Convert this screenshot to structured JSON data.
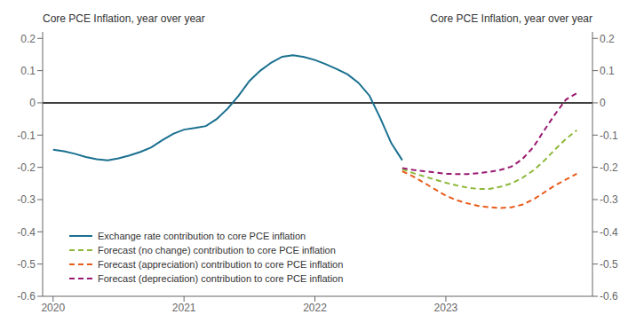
{
  "chart_data": {
    "type": "line",
    "title": "Core PCE Inflation, year over year",
    "subtitle": "Core PCE Inflation, year over year",
    "xlim": [
      2019.92,
      2024.12
    ],
    "xticks": [
      2020,
      2021,
      2022,
      2023
    ],
    "ylim": [
      -0.6,
      0.22
    ],
    "yticks": [
      -0.6,
      -0.5,
      -0.4,
      -0.3,
      -0.2,
      -0.1,
      0,
      0.1,
      0.2
    ],
    "y2lim": [
      -0.6,
      0.22
    ],
    "y2ticks": [
      -0.6,
      -0.5,
      -0.4,
      -0.3,
      -0.2,
      -0.1,
      0,
      0.1,
      0.2
    ],
    "grid": false,
    "legend": "lower left",
    "reference_lines": [
      {
        "y": 0,
        "color": "#000000"
      }
    ],
    "series": [
      {
        "name": "Exchange rate contribution to core PCE inflation",
        "color": "#1a7090",
        "line_style": "solid",
        "x": [
          2020.0,
          2020.083,
          2020.167,
          2020.25,
          2020.333,
          2020.417,
          2020.5,
          2020.583,
          2020.667,
          2020.75,
          2020.833,
          2020.917,
          2021.0,
          2021.083,
          2021.167,
          2021.25,
          2021.333,
          2021.417,
          2021.5,
          2021.583,
          2021.667,
          2021.75,
          2021.833,
          2021.917,
          2022.0,
          2022.083,
          2022.167,
          2022.25,
          2022.333,
          2022.417,
          2022.5,
          2022.583,
          2022.667
        ],
        "values": [
          -0.145,
          -0.15,
          -0.158,
          -0.168,
          -0.175,
          -0.178,
          -0.172,
          -0.163,
          -0.152,
          -0.138,
          -0.116,
          -0.096,
          -0.083,
          -0.078,
          -0.072,
          -0.05,
          -0.018,
          0.022,
          0.068,
          0.1,
          0.125,
          0.143,
          0.148,
          0.142,
          0.133,
          0.12,
          0.105,
          0.088,
          0.062,
          0.022,
          -0.048,
          -0.125,
          -0.178
        ]
      },
      {
        "name": "Forecast (no change) contribution to core PCE inflation",
        "color": "#8db83a",
        "line_style": "dashed",
        "x": [
          2022.667,
          2022.75,
          2022.833,
          2022.917,
          2023.0,
          2023.083,
          2023.167,
          2023.25,
          2023.333,
          2023.417,
          2023.5,
          2023.583,
          2023.667,
          2023.75,
          2023.833,
          2023.917,
          2024.0
        ],
        "values": [
          -0.205,
          -0.218,
          -0.228,
          -0.238,
          -0.248,
          -0.256,
          -0.263,
          -0.267,
          -0.267,
          -0.26,
          -0.25,
          -0.233,
          -0.21,
          -0.18,
          -0.145,
          -0.112,
          -0.085
        ]
      },
      {
        "name": "Forecast (appreciation) contribution to core PCE inflation",
        "color": "#e85c1a",
        "line_style": "dashed",
        "x": [
          2022.667,
          2022.75,
          2022.833,
          2022.917,
          2023.0,
          2023.083,
          2023.167,
          2023.25,
          2023.333,
          2023.417,
          2023.5,
          2023.583,
          2023.667,
          2023.75,
          2023.833,
          2023.917,
          2024.0
        ],
        "values": [
          -0.212,
          -0.228,
          -0.248,
          -0.268,
          -0.288,
          -0.302,
          -0.312,
          -0.32,
          -0.324,
          -0.326,
          -0.324,
          -0.316,
          -0.3,
          -0.278,
          -0.256,
          -0.238,
          -0.22
        ]
      },
      {
        "name": "Forecast (depreciation) contribution to core PCE inflation",
        "color": "#991870",
        "line_style": "dashed",
        "x": [
          2022.667,
          2022.75,
          2022.833,
          2022.917,
          2023.0,
          2023.083,
          2023.167,
          2023.25,
          2023.333,
          2023.417,
          2023.5,
          2023.583,
          2023.667,
          2023.75,
          2023.833,
          2023.917,
          2024.0
        ],
        "values": [
          -0.202,
          -0.208,
          -0.212,
          -0.216,
          -0.22,
          -0.221,
          -0.221,
          -0.218,
          -0.214,
          -0.208,
          -0.198,
          -0.175,
          -0.138,
          -0.086,
          -0.036,
          0.01,
          0.03
        ]
      }
    ]
  }
}
